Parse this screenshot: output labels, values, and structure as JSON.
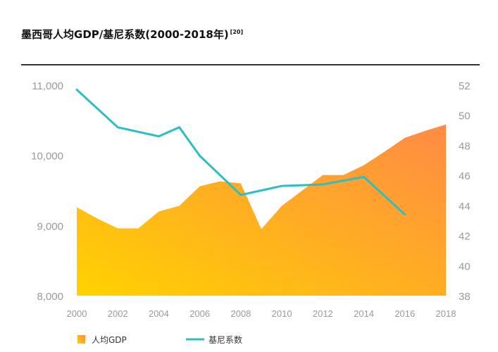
{
  "title": "墨西哥人均GDP/基尼系数(2000-2018年)",
  "title_ref": "[20]",
  "colors": {
    "area_start": "#FFD200",
    "area_end": "#FF8A45",
    "line": "#2BBFC4",
    "rule": "#333333"
  },
  "chart_data": {
    "type": "area",
    "x_ticks": [
      2000,
      2002,
      2004,
      2006,
      2008,
      2010,
      2012,
      2014,
      2016,
      2018
    ],
    "y_left": {
      "min": 8000,
      "max": 11000,
      "ticks": [
        "8,000",
        "9,000",
        "10,000",
        "11,000"
      ]
    },
    "y_right": {
      "min": 38,
      "max": 52,
      "ticks": [
        "38",
        "40",
        "42",
        "44",
        "46",
        "48",
        "50",
        "52"
      ]
    },
    "series": [
      {
        "name": "人均GDP",
        "type": "area",
        "axis": "left",
        "x": [
          2000,
          2001,
          2002,
          2003,
          2004,
          2005,
          2006,
          2007,
          2008,
          2009,
          2010,
          2011,
          2012,
          2013,
          2014,
          2015,
          2016,
          2017,
          2018
        ],
        "values": [
          9260,
          9100,
          8960,
          8960,
          9200,
          9280,
          9560,
          9630,
          9600,
          8950,
          9280,
          9500,
          9720,
          9720,
          9860,
          10050,
          10250,
          10350,
          10440
        ]
      },
      {
        "name": "基尼系数",
        "type": "line",
        "axis": "right",
        "x": [
          2000,
          2002,
          2004,
          2005,
          2006,
          2008,
          2010,
          2012,
          2014,
          2016
        ],
        "values": [
          51.7,
          49.2,
          48.6,
          49.2,
          47.3,
          44.7,
          45.3,
          45.4,
          45.9,
          43.4
        ]
      }
    ],
    "legend": [
      "人均GDP",
      "基尼系数"
    ],
    "legend_position": "bottom-left",
    "grid": false
  }
}
